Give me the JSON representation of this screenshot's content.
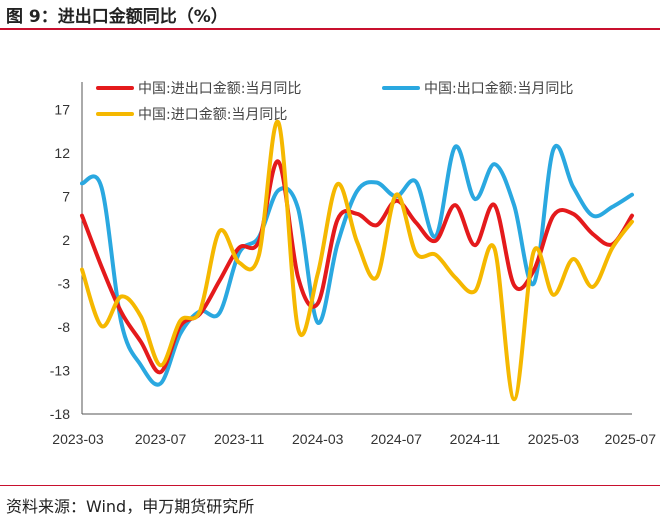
{
  "figure": {
    "title": "图 9：进出口金额同比（%）",
    "source": "资料来源：Wind，申万期货研究所"
  },
  "chart_data": {
    "type": "line",
    "title": "图 9：进出口金额同比（%）",
    "xlabel": "",
    "ylabel": "",
    "ylim": [
      -18,
      19
    ],
    "yticks": [
      17,
      12,
      7,
      2,
      -3,
      -8,
      -13,
      -18
    ],
    "xtick_labels": [
      "2023-03",
      "2023-07",
      "2023-11",
      "2024-03",
      "2024-07",
      "2024-11",
      "2025-03",
      "2025-07"
    ],
    "categories": [
      "2023-03",
      "2023-04",
      "2023-05",
      "2023-06",
      "2023-07",
      "2023-08",
      "2023-09",
      "2023-10",
      "2023-11",
      "2023-12",
      "2024-01",
      "2024-02",
      "2024-03",
      "2024-04",
      "2024-05",
      "2024-06",
      "2024-07",
      "2024-08",
      "2024-09",
      "2024-10",
      "2024-11",
      "2024-12",
      "2025-01",
      "2025-02",
      "2025-03",
      "2025-04",
      "2025-05",
      "2025-06",
      "2025-07"
    ],
    "grid": false,
    "legend_position": "top",
    "series": [
      {
        "name": "中国:进出口金额:当月同比",
        "color": "#e41a1c",
        "values": [
          4.8,
          -1.1,
          -6.3,
          -9.7,
          -13.2,
          -7.9,
          -6.5,
          -2.7,
          1.1,
          1.8,
          11.0,
          -2.3,
          -5.3,
          4.3,
          5.0,
          3.7,
          6.5,
          4.0,
          1.9,
          6.0,
          1.4,
          6.0,
          -3.2,
          -1.5,
          4.8,
          5.0,
          2.7,
          1.5,
          4.8
        ]
      },
      {
        "name": "中国:出口金额:当月同比",
        "color": "#2aa8e0",
        "values": [
          8.5,
          8.0,
          -7.5,
          -12.4,
          -14.5,
          -8.8,
          -6.2,
          -6.4,
          0.5,
          2.3,
          7.7,
          5.6,
          -7.5,
          1.5,
          7.6,
          8.6,
          7.0,
          8.7,
          2.4,
          12.7,
          6.7,
          10.7,
          6.0,
          -3.0,
          12.4,
          8.1,
          4.8,
          5.8,
          7.2
        ]
      },
      {
        "name": "中国:进口金额:当月同比",
        "color": "#f5b800",
        "values": [
          -1.4,
          -7.9,
          -4.5,
          -6.8,
          -12.4,
          -7.3,
          -6.2,
          3.0,
          -0.6,
          0.2,
          15.5,
          -8.2,
          -1.9,
          8.4,
          1.8,
          -2.3,
          7.2,
          0.5,
          0.3,
          -2.3,
          -3.9,
          1.0,
          -16.3,
          0.7,
          -4.3,
          -0.2,
          -3.4,
          1.1,
          4.1
        ]
      }
    ]
  }
}
